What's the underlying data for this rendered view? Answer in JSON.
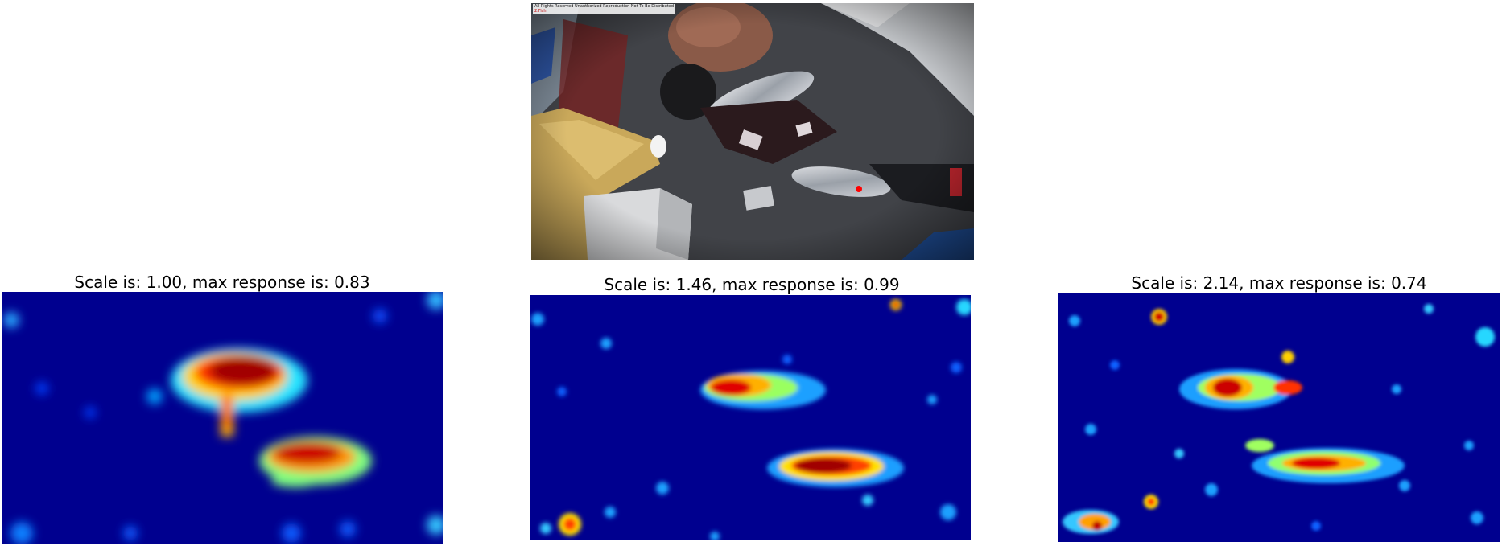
{
  "photo": {
    "overlay_text": "All Rights Reserved  Unauthorized Reproduction  Not To Be Distributed",
    "overlay_text_2": "2:Fish"
  },
  "panels": [
    {
      "title": "Scale is: 1.00, max response is: 0.83",
      "scale": 1.0,
      "max_response": 0.83
    },
    {
      "title": "Scale is: 1.46, max response is: 0.99",
      "scale": 1.46,
      "max_response": 0.99
    },
    {
      "title": "Scale is: 2.14, max response is: 0.74",
      "scale": 2.14,
      "max_response": 0.74
    }
  ],
  "colormap": "jet",
  "colors": {
    "jet_low": "#00008f",
    "jet_high": "#800000"
  }
}
